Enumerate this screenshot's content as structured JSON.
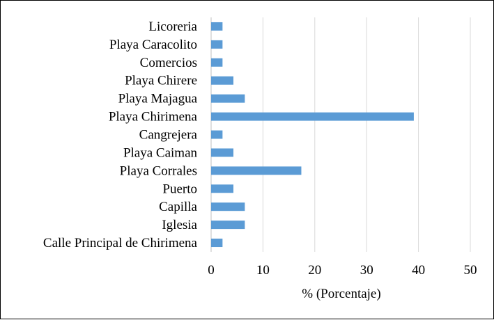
{
  "chart_data": {
    "type": "bar",
    "orientation": "horizontal",
    "categories": [
      "Calle Principal de Chirimena",
      "Iglesia",
      "Capilla",
      "Puerto",
      "Playa Corrales",
      "Playa Caiman",
      "Cangrejera",
      "Playa Chirimena",
      "Playa Majagua",
      "Playa Chirere",
      "Comercios",
      "Playa Caracolito",
      "Licoreria"
    ],
    "values": [
      2.2,
      6.5,
      6.5,
      4.3,
      17.4,
      4.3,
      2.2,
      39.1,
      6.5,
      4.3,
      2.2,
      2.2,
      2.2
    ],
    "xlabel": "% (Porcentaje)",
    "ylabel": "",
    "xlim": [
      0,
      50
    ],
    "xticks": [
      "0",
      "10",
      "20",
      "30",
      "40",
      "50"
    ],
    "grid": "vertical",
    "bar_color": "#5b9bd5",
    "grid_color": "#d9d9d9",
    "legend": "none"
  }
}
